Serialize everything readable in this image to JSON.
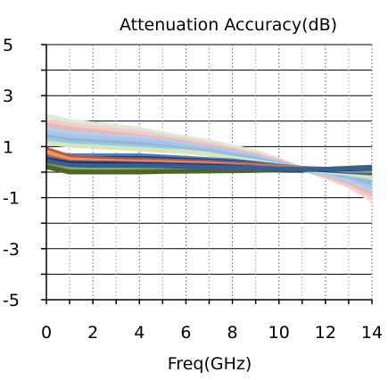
{
  "chart_data": {
    "type": "line",
    "title": "Attenuation Accuracy(dB)",
    "xlabel": "Freq(GHz)",
    "ylabel": "",
    "xlim": [
      0,
      14
    ],
    "ylim": [
      -5,
      5
    ],
    "xticks": [
      0,
      2,
      4,
      6,
      8,
      10,
      12,
      14
    ],
    "yticks": [
      5,
      3,
      1,
      -1,
      -3,
      -5
    ],
    "grid": {
      "vertical": "dotted",
      "horizontal": "solid"
    },
    "legend": "none",
    "x": [
      0,
      1,
      2,
      3,
      4,
      5,
      6,
      7,
      8,
      9,
      10,
      11,
      12,
      13,
      14
    ],
    "series": [
      {
        "color": "#dfe9d4",
        "values": [
          2.2,
          2.0,
          1.9,
          1.8,
          1.7,
          1.5,
          1.35,
          1.2,
          1.0,
          0.8,
          0.5,
          0.15,
          -0.2,
          -0.55,
          -1.1
        ]
      },
      {
        "color": "#f4cccc",
        "values": [
          2.0,
          1.85,
          1.75,
          1.65,
          1.55,
          1.4,
          1.25,
          1.1,
          0.9,
          0.7,
          0.45,
          0.12,
          -0.15,
          -0.5,
          -1.0
        ]
      },
      {
        "color": "#e6b8b7",
        "values": [
          1.85,
          1.7,
          1.6,
          1.5,
          1.4,
          1.3,
          1.15,
          1.0,
          0.85,
          0.65,
          0.4,
          0.1,
          -0.1,
          -0.4,
          -0.85
        ]
      },
      {
        "color": "#b9cde5",
        "values": [
          1.7,
          1.55,
          1.5,
          1.4,
          1.35,
          1.25,
          1.1,
          0.95,
          0.8,
          0.6,
          0.38,
          0.1,
          -0.05,
          -0.3,
          -0.7
        ]
      },
      {
        "color": "#a9c4eb",
        "values": [
          1.55,
          1.4,
          1.35,
          1.3,
          1.25,
          1.15,
          1.0,
          0.9,
          0.75,
          0.55,
          0.35,
          0.1,
          0.0,
          -0.2,
          -0.55
        ]
      },
      {
        "color": "#95b3d7",
        "values": [
          1.4,
          1.25,
          1.2,
          1.15,
          1.1,
          1.0,
          0.9,
          0.8,
          0.65,
          0.5,
          0.32,
          0.12,
          0.0,
          -0.15,
          -0.4
        ]
      },
      {
        "color": "#93cddd",
        "values": [
          1.3,
          1.15,
          1.1,
          1.05,
          1.0,
          0.95,
          0.85,
          0.75,
          0.6,
          0.45,
          0.3,
          0.12,
          0.0,
          -0.1,
          -0.3
        ]
      },
      {
        "color": "#d8e4bc",
        "values": [
          1.15,
          1.05,
          1.0,
          0.95,
          0.9,
          0.85,
          0.8,
          0.7,
          0.55,
          0.42,
          0.28,
          0.12,
          0.02,
          -0.05,
          -0.2
        ]
      },
      {
        "color": "#4f81bd",
        "values": [
          0.75,
          0.65,
          0.65,
          0.65,
          0.65,
          0.6,
          0.55,
          0.5,
          0.45,
          0.35,
          0.25,
          0.15,
          0.08,
          0.02,
          -0.05
        ]
      },
      {
        "color": "#1f497d",
        "values": [
          0.65,
          0.55,
          0.55,
          0.55,
          0.55,
          0.52,
          0.48,
          0.44,
          0.4,
          0.32,
          0.22,
          0.14,
          0.08,
          0.03,
          0.0
        ]
      },
      {
        "color": "#31859c",
        "values": [
          0.55,
          0.45,
          0.45,
          0.45,
          0.45,
          0.45,
          0.42,
          0.4,
          0.35,
          0.3,
          0.22,
          0.15,
          0.1,
          0.05,
          0.02
        ]
      },
      {
        "color": "#c0504d",
        "values": [
          0.9,
          0.6,
          0.55,
          0.5,
          0.48,
          0.45,
          0.42,
          0.38,
          0.33,
          0.28,
          0.22,
          0.16,
          0.12,
          0.08,
          0.05
        ]
      },
      {
        "color": "#f79646",
        "values": [
          0.8,
          0.5,
          0.45,
          0.42,
          0.4,
          0.38,
          0.35,
          0.32,
          0.28,
          0.24,
          0.2,
          0.15,
          0.12,
          0.08,
          0.06
        ]
      },
      {
        "color": "#8064a2",
        "values": [
          0.6,
          0.4,
          0.38,
          0.36,
          0.35,
          0.33,
          0.3,
          0.28,
          0.25,
          0.22,
          0.18,
          0.14,
          0.12,
          0.1,
          0.08
        ]
      },
      {
        "color": "#948a54",
        "values": [
          0.45,
          0.3,
          0.28,
          0.27,
          0.26,
          0.25,
          0.24,
          0.22,
          0.2,
          0.18,
          0.16,
          0.14,
          0.12,
          0.1,
          0.08
        ]
      },
      {
        "color": "#4bacc6",
        "values": [
          0.35,
          0.25,
          0.25,
          0.25,
          0.25,
          0.24,
          0.22,
          0.2,
          0.18,
          0.16,
          0.14,
          0.12,
          0.1,
          0.1,
          0.12
        ]
      },
      {
        "color": "#9bbb59",
        "values": [
          0.4,
          0.15,
          0.12,
          0.12,
          0.12,
          0.12,
          0.12,
          0.12,
          0.12,
          0.12,
          0.12,
          0.12,
          0.12,
          0.12,
          0.12
        ]
      },
      {
        "color": "#76923c",
        "values": [
          0.3,
          0.05,
          0.04,
          0.04,
          0.05,
          0.05,
          0.05,
          0.06,
          0.06,
          0.07,
          0.08,
          0.1,
          0.12,
          0.14,
          0.16
        ]
      },
      {
        "color": "#4f6228",
        "values": [
          0.2,
          0.0,
          0.0,
          0.0,
          0.0,
          0.02,
          0.03,
          0.04,
          0.05,
          0.06,
          0.08,
          0.1,
          0.12,
          0.16,
          0.2
        ]
      },
      {
        "color": "#17375e",
        "values": [
          0.5,
          0.35,
          0.33,
          0.32,
          0.3,
          0.28,
          0.26,
          0.24,
          0.2,
          0.16,
          0.12,
          0.1,
          0.1,
          0.12,
          0.15
        ]
      },
      {
        "color": "#376092",
        "values": [
          0.45,
          0.28,
          0.26,
          0.26,
          0.25,
          0.24,
          0.22,
          0.2,
          0.18,
          0.15,
          0.13,
          0.12,
          0.12,
          0.14,
          0.18
        ]
      }
    ]
  }
}
